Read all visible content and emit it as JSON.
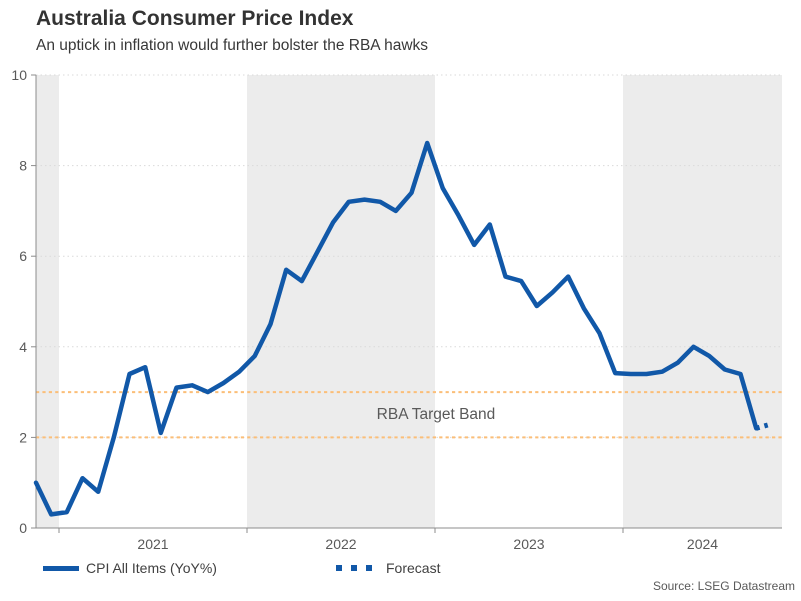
{
  "header": {
    "title": "Australia Consumer Price Index",
    "subtitle": "An uptick in inflation would further bolster the RBA hawks"
  },
  "legend": {
    "items": [
      {
        "label": "CPI All Items (YoY%)",
        "style": "solid",
        "color": "#1158A8"
      },
      {
        "label": "Forecast",
        "style": "dotted",
        "color": "#1158A8"
      }
    ]
  },
  "source": "Source: LSEG Datastream",
  "chart_data": {
    "type": "line",
    "title": "Australia Consumer Price Index",
    "subtitle": "An uptick in inflation would further bolster the RBA hawks",
    "xlabel": "",
    "ylabel": "",
    "ylim": [
      0,
      10
    ],
    "yticks": [
      0,
      2,
      4,
      6,
      8,
      10
    ],
    "x_range": [
      "2020-11",
      "2024-11"
    ],
    "x_tick_years": [
      "2021",
      "2022",
      "2023",
      "2024"
    ],
    "shaded_years": [
      2020,
      2022,
      2024
    ],
    "grid": "horizontal-dotted",
    "legend_position": "bottom",
    "target_band": {
      "low": 2,
      "high": 3
    },
    "annotation": {
      "text": "RBA Target Band"
    },
    "colors": {
      "line": "#1158A8",
      "target_band": "#FBBE78",
      "shading": "#ECECEC",
      "grid": "#DADADA",
      "axis": "#8C8C8C",
      "tick_text": "#595959"
    },
    "series": [
      {
        "name": "CPI All Items (YoY%)",
        "style": "solid",
        "points": [
          [
            "2020-11",
            1.0
          ],
          [
            "2020-12",
            0.3
          ],
          [
            "2021-01",
            0.35
          ],
          [
            "2021-02",
            1.1
          ],
          [
            "2021-03",
            0.8
          ],
          [
            "2021-04",
            2.0
          ],
          [
            "2021-05",
            3.4
          ],
          [
            "2021-06",
            3.55
          ],
          [
            "2021-07",
            2.1
          ],
          [
            "2021-08",
            3.1
          ],
          [
            "2021-09",
            3.15
          ],
          [
            "2021-10",
            3.0
          ],
          [
            "2021-11",
            3.2
          ],
          [
            "2021-12",
            3.45
          ],
          [
            "2022-01",
            3.8
          ],
          [
            "2022-02",
            4.5
          ],
          [
            "2022-03",
            5.7
          ],
          [
            "2022-04",
            5.45
          ],
          [
            "2022-05",
            6.1
          ],
          [
            "2022-06",
            6.75
          ],
          [
            "2022-07",
            7.2
          ],
          [
            "2022-08",
            7.25
          ],
          [
            "2022-09",
            7.2
          ],
          [
            "2022-10",
            7.0
          ],
          [
            "2022-11",
            7.4
          ],
          [
            "2022-12",
            8.5
          ],
          [
            "2023-01",
            7.5
          ],
          [
            "2023-02",
            6.9
          ],
          [
            "2023-03",
            6.25
          ],
          [
            "2023-04",
            6.7
          ],
          [
            "2023-05",
            5.55
          ],
          [
            "2023-06",
            5.45
          ],
          [
            "2023-07",
            4.9
          ],
          [
            "2023-08",
            5.2
          ],
          [
            "2023-09",
            5.55
          ],
          [
            "2023-10",
            4.85
          ],
          [
            "2023-11",
            4.3
          ],
          [
            "2023-12",
            3.42
          ],
          [
            "2024-01",
            3.4
          ],
          [
            "2024-02",
            3.4
          ],
          [
            "2024-03",
            3.45
          ],
          [
            "2024-04",
            3.65
          ],
          [
            "2024-05",
            4.0
          ],
          [
            "2024-06",
            3.8
          ],
          [
            "2024-07",
            3.5
          ],
          [
            "2024-08",
            3.4
          ],
          [
            "2024-09",
            2.2
          ]
        ]
      },
      {
        "name": "Forecast",
        "style": "dotted",
        "points": [
          [
            "2024-09",
            2.2
          ],
          [
            "2024-10",
            2.3
          ]
        ]
      }
    ]
  }
}
